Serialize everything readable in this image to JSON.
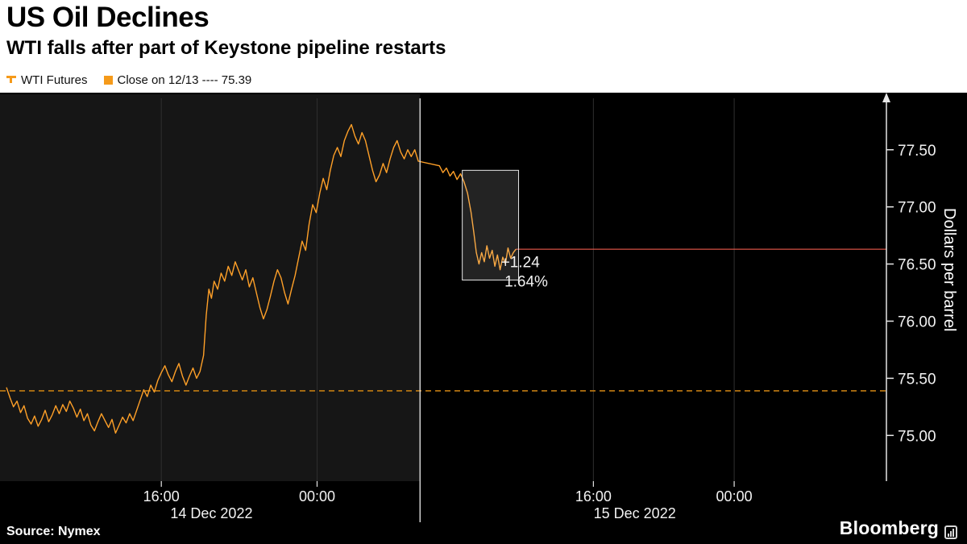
{
  "header": {
    "title": "US Oil Declines",
    "subtitle": "WTI falls after part of Keystone pipeline restarts"
  },
  "legend": [
    {
      "label": "WTI Futures",
      "marker": "line"
    },
    {
      "label": "Close on 12/13 ---- 75.39",
      "marker": "square"
    }
  ],
  "source": "Source: Nymex",
  "brand": "Bloomberg",
  "y_axis": {
    "title": "Dollars per barrel",
    "ticks": [
      75.0,
      75.5,
      76.0,
      76.5,
      77.0,
      77.5
    ],
    "tick_labels": [
      "75.00",
      "75.50",
      "76.00",
      "76.50",
      "77.00",
      "77.50"
    ]
  },
  "x_axis": {
    "time_ticks": [
      {
        "label": "16:00",
        "t": 0.176
      },
      {
        "label": "00:00",
        "t": 0.353
      },
      {
        "label": "16:00",
        "t": 0.667
      },
      {
        "label": "00:00",
        "t": 0.827
      }
    ],
    "date_labels": [
      {
        "label": "14 Dec 2022",
        "t": 0.233
      },
      {
        "label": "15 Dec 2022",
        "t": 0.714
      }
    ],
    "session_divider_t": 0.47
  },
  "chart_data": {
    "type": "line",
    "title": "US Oil Declines",
    "xlabel": "",
    "ylabel": "Dollars per barrel",
    "ylim": [
      74.6,
      77.95
    ],
    "grid": "vertical-only",
    "legend_position": "top-left",
    "colors": {
      "line": "#ffa028",
      "close_line": "#c27c12",
      "last_price_line": "#e8594a",
      "annotation": "#f59a1a",
      "session_shade": "#161616",
      "grid": "#2f2f2f",
      "axis": "#e6e6e6"
    },
    "session_shade": {
      "t0": 0.0,
      "t1": 0.47
    },
    "close_line": {
      "label": "Close on 12/13",
      "value": 75.39
    },
    "last_price": {
      "value": 76.63,
      "change": "+1.24",
      "change_pct": "1.64%"
    },
    "highlight_box": {
      "t0": 0.518,
      "t1": 0.582,
      "p0": 76.36,
      "p1": 77.32
    },
    "series": [
      {
        "name": "WTI Futures",
        "points": [
          [
            0.0,
            75.42
          ],
          [
            0.004,
            75.33
          ],
          [
            0.008,
            75.25
          ],
          [
            0.012,
            75.3
          ],
          [
            0.016,
            75.2
          ],
          [
            0.02,
            75.26
          ],
          [
            0.024,
            75.15
          ],
          [
            0.028,
            75.1
          ],
          [
            0.032,
            75.17
          ],
          [
            0.036,
            75.08
          ],
          [
            0.04,
            75.14
          ],
          [
            0.044,
            75.22
          ],
          [
            0.048,
            75.12
          ],
          [
            0.052,
            75.18
          ],
          [
            0.056,
            75.26
          ],
          [
            0.06,
            75.19
          ],
          [
            0.064,
            75.27
          ],
          [
            0.068,
            75.21
          ],
          [
            0.072,
            75.3
          ],
          [
            0.076,
            75.24
          ],
          [
            0.08,
            75.16
          ],
          [
            0.084,
            75.23
          ],
          [
            0.088,
            75.13
          ],
          [
            0.092,
            75.19
          ],
          [
            0.096,
            75.09
          ],
          [
            0.1,
            75.04
          ],
          [
            0.104,
            75.12
          ],
          [
            0.108,
            75.19
          ],
          [
            0.112,
            75.13
          ],
          [
            0.116,
            75.07
          ],
          [
            0.12,
            75.14
          ],
          [
            0.124,
            75.02
          ],
          [
            0.128,
            75.09
          ],
          [
            0.132,
            75.16
          ],
          [
            0.136,
            75.11
          ],
          [
            0.14,
            75.19
          ],
          [
            0.144,
            75.13
          ],
          [
            0.148,
            75.22
          ],
          [
            0.152,
            75.31
          ],
          [
            0.156,
            75.4
          ],
          [
            0.16,
            75.34
          ],
          [
            0.164,
            75.44
          ],
          [
            0.168,
            75.38
          ],
          [
            0.172,
            75.48
          ],
          [
            0.176,
            75.55
          ],
          [
            0.18,
            75.61
          ],
          [
            0.184,
            75.53
          ],
          [
            0.188,
            75.47
          ],
          [
            0.192,
            75.56
          ],
          [
            0.196,
            75.63
          ],
          [
            0.2,
            75.52
          ],
          [
            0.204,
            75.44
          ],
          [
            0.208,
            75.52
          ],
          [
            0.212,
            75.59
          ],
          [
            0.216,
            75.5
          ],
          [
            0.22,
            75.56
          ],
          [
            0.224,
            75.7
          ],
          [
            0.227,
            76.05
          ],
          [
            0.23,
            76.28
          ],
          [
            0.233,
            76.2
          ],
          [
            0.236,
            76.35
          ],
          [
            0.24,
            76.28
          ],
          [
            0.244,
            76.42
          ],
          [
            0.248,
            76.35
          ],
          [
            0.252,
            76.48
          ],
          [
            0.256,
            76.4
          ],
          [
            0.26,
            76.52
          ],
          [
            0.264,
            76.44
          ],
          [
            0.268,
            76.36
          ],
          [
            0.272,
            76.45
          ],
          [
            0.276,
            76.3
          ],
          [
            0.28,
            76.38
          ],
          [
            0.284,
            76.25
          ],
          [
            0.288,
            76.12
          ],
          [
            0.292,
            76.02
          ],
          [
            0.296,
            76.1
          ],
          [
            0.3,
            76.22
          ],
          [
            0.304,
            76.35
          ],
          [
            0.308,
            76.45
          ],
          [
            0.312,
            76.38
          ],
          [
            0.316,
            76.25
          ],
          [
            0.32,
            76.15
          ],
          [
            0.324,
            76.28
          ],
          [
            0.328,
            76.4
          ],
          [
            0.332,
            76.55
          ],
          [
            0.336,
            76.7
          ],
          [
            0.34,
            76.62
          ],
          [
            0.344,
            76.85
          ],
          [
            0.348,
            77.02
          ],
          [
            0.352,
            76.95
          ],
          [
            0.356,
            77.12
          ],
          [
            0.36,
            77.25
          ],
          [
            0.364,
            77.15
          ],
          [
            0.368,
            77.32
          ],
          [
            0.372,
            77.45
          ],
          [
            0.376,
            77.52
          ],
          [
            0.38,
            77.44
          ],
          [
            0.384,
            77.58
          ],
          [
            0.388,
            77.66
          ],
          [
            0.392,
            77.72
          ],
          [
            0.396,
            77.62
          ],
          [
            0.4,
            77.55
          ],
          [
            0.404,
            77.65
          ],
          [
            0.408,
            77.58
          ],
          [
            0.412,
            77.45
          ],
          [
            0.416,
            77.32
          ],
          [
            0.42,
            77.22
          ],
          [
            0.424,
            77.28
          ],
          [
            0.428,
            77.38
          ],
          [
            0.432,
            77.3
          ],
          [
            0.436,
            77.42
          ],
          [
            0.44,
            77.52
          ],
          [
            0.444,
            77.58
          ],
          [
            0.448,
            77.48
          ],
          [
            0.452,
            77.42
          ],
          [
            0.456,
            77.5
          ],
          [
            0.46,
            77.44
          ],
          [
            0.464,
            77.5
          ],
          [
            0.468,
            77.4
          ],
          [
            0.492,
            77.36
          ],
          [
            0.496,
            77.3
          ],
          [
            0.5,
            77.34
          ],
          [
            0.504,
            77.27
          ],
          [
            0.508,
            77.31
          ],
          [
            0.512,
            77.24
          ],
          [
            0.516,
            77.29
          ],
          [
            0.52,
            77.22
          ],
          [
            0.524,
            77.12
          ],
          [
            0.528,
            76.95
          ],
          [
            0.531,
            76.78
          ],
          [
            0.534,
            76.6
          ],
          [
            0.537,
            76.5
          ],
          [
            0.54,
            76.6
          ],
          [
            0.543,
            76.52
          ],
          [
            0.546,
            76.66
          ],
          [
            0.549,
            76.55
          ],
          [
            0.552,
            76.62
          ],
          [
            0.555,
            76.48
          ],
          [
            0.558,
            76.58
          ],
          [
            0.561,
            76.45
          ],
          [
            0.564,
            76.56
          ],
          [
            0.567,
            76.5
          ],
          [
            0.57,
            76.64
          ],
          [
            0.573,
            76.55
          ],
          [
            0.576,
            76.6
          ],
          [
            0.579,
            76.63
          ]
        ]
      }
    ]
  }
}
